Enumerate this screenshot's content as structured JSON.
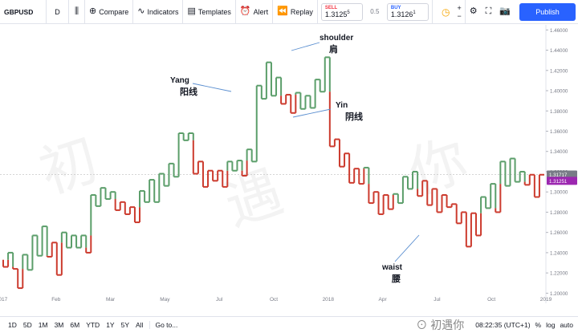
{
  "toolbar": {
    "symbol": "GBPUSD",
    "interval": "D",
    "compare_label": "Compare",
    "indicators_label": "Indicators",
    "templates_label": "Templates",
    "alert_label": "Alert",
    "replay_label": "Replay",
    "sell_label": "SELL",
    "sell_value": "1.3125",
    "sell_sup": "5",
    "spread": "0.5",
    "buy_label": "BUY",
    "buy_value": "1.3126",
    "buy_sup": "1",
    "publish_label": "Publish"
  },
  "chart_data": {
    "type": "line",
    "style": "kagi",
    "yaxis_ticks": [
      "1.46000",
      "1.44000",
      "1.42000",
      "1.40000",
      "1.38000",
      "1.36000",
      "1.34000",
      "1.32000",
      "1.30000",
      "1.28000",
      "1.26000",
      "1.24000",
      "1.22000",
      "1.20000"
    ],
    "ylim": [
      1.19,
      1.465
    ],
    "xaxis_ticks": [
      "2017",
      "Feb",
      "Mar",
      "May",
      "Jul",
      "Oct",
      "2018",
      "Apr",
      "Jul",
      "Oct",
      "2019"
    ],
    "price_labels": [
      {
        "value": "1.31717",
        "color": "#787b86",
        "price": 1.31717
      },
      {
        "value": "1.31251",
        "color": "#9c27b0",
        "price": 1.31251
      }
    ],
    "colors": {
      "yang": "#5b9e6a",
      "yin": "#cc3b2e"
    },
    "series": [
      {
        "values": [
          1.233,
          1.226,
          1.24,
          1.224,
          1.205,
          1.238,
          1.223,
          1.257,
          1.237,
          1.266,
          1.236,
          1.25,
          1.218,
          1.26,
          1.245,
          1.257,
          1.245,
          1.257,
          1.24,
          1.297,
          1.286,
          1.304,
          1.293,
          1.3,
          1.282,
          1.29,
          1.278,
          1.285,
          1.27,
          1.301,
          1.29,
          1.312,
          1.29,
          1.318,
          1.306,
          1.328,
          1.315,
          1.358,
          1.351,
          1.358,
          1.318,
          1.33,
          1.305,
          1.321,
          1.311,
          1.321,
          1.305,
          1.33,
          1.321,
          1.331,
          1.316,
          1.342,
          1.33,
          1.405,
          1.392,
          1.428,
          1.395,
          1.413,
          1.387,
          1.396,
          1.378,
          1.398,
          1.382,
          1.395,
          1.383,
          1.411,
          1.399,
          1.433,
          1.345,
          1.352,
          1.325,
          1.338,
          1.309,
          1.323,
          1.308,
          1.324,
          1.289,
          1.3,
          1.278,
          1.297,
          1.283,
          1.298,
          1.289,
          1.315,
          1.303,
          1.32,
          1.296,
          1.311,
          1.287,
          1.303,
          1.28,
          1.297,
          1.285,
          1.288,
          1.269,
          1.28,
          1.246,
          1.279,
          1.257,
          1.295,
          1.284,
          1.308,
          1.28,
          1.33,
          1.306,
          1.333,
          1.31,
          1.32,
          1.307,
          1.317,
          1.295,
          1.317
        ]
      }
    ],
    "annotations": [
      {
        "text": "shoulder",
        "sub": "肩"
      },
      {
        "text": "Yang",
        "sub": "阳线"
      },
      {
        "text": "Yin",
        "sub": "阴线"
      },
      {
        "text": "waist",
        "sub": "腰"
      }
    ]
  },
  "bottombar": {
    "ranges": [
      "1D",
      "5D",
      "1M",
      "3M",
      "6M",
      "YTD",
      "1Y",
      "5Y",
      "All"
    ],
    "goto_label": "Go to...",
    "time": "08:22:35 (UTC+1)",
    "percent_label": "%",
    "log_label": "log",
    "auto_label": "auto"
  },
  "watermark_logo": "初遇你"
}
